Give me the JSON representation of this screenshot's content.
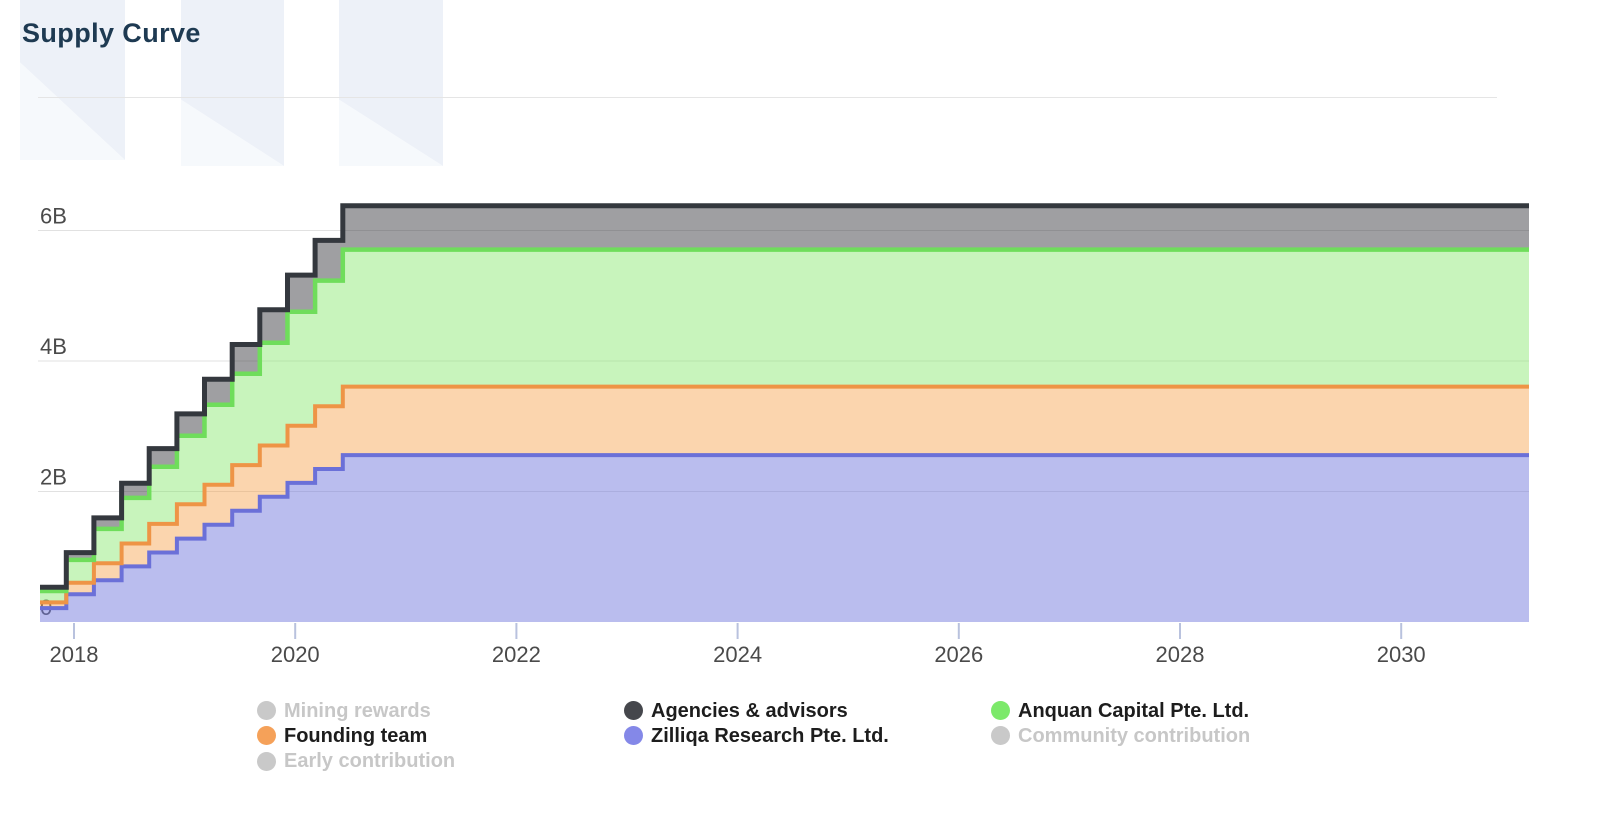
{
  "chart_data": {
    "type": "area",
    "variant": "stacked-step-area",
    "title": "Supply Curve",
    "x_axis": {
      "range_years": [
        2017.693,
        2031.156
      ],
      "ticks": [
        {
          "year": 2018,
          "label": "2018"
        },
        {
          "year": 2020,
          "label": "2020"
        },
        {
          "year": 2022,
          "label": "2022"
        },
        {
          "year": 2024,
          "label": "2024"
        },
        {
          "year": 2026,
          "label": "2026"
        },
        {
          "year": 2028,
          "label": "2028"
        },
        {
          "year": 2030,
          "label": "2030"
        }
      ]
    },
    "y_axis": {
      "unit": "tokens",
      "range_billions": [
        0,
        6.77
      ],
      "ticks": [
        {
          "value_b": 0,
          "label": "0"
        },
        {
          "value_b": 2,
          "label": "2B"
        },
        {
          "value_b": 4,
          "label": "4B"
        },
        {
          "value_b": 6,
          "label": "6B"
        }
      ]
    },
    "vesting": {
      "tranche_count": 12,
      "note": "each visible series unlocks in 12 equal quarterly tranches, first tranche at chart start, fully vested mid-2020",
      "level_start_years": [
        2017.693,
        2017.93,
        2018.18,
        2018.43,
        2018.68,
        2018.93,
        2019.18,
        2019.43,
        2019.68,
        2019.93,
        2020.18,
        2020.43
      ]
    },
    "series": [
      {
        "name": "Zilliqa Research Pte. Ltd.",
        "total_b": 2.5575,
        "line": "#6b70d8",
        "fill": "rgba(117,123,221,0.5)",
        "line_width": 4
      },
      {
        "name": "Founding team",
        "total_b": 1.05,
        "line": "#ee9446",
        "fill": "rgba(246,162,75,0.45)",
        "line_width": 4
      },
      {
        "name": "Anquan Capital Pte. Ltd.",
        "total_b": 2.1,
        "line": "#6fdd5b",
        "fill": "rgba(133,231,106,0.45)",
        "line_width": 4.5
      },
      {
        "name": "Agencies & advisors",
        "total_b": 0.672,
        "line": "#34383e",
        "fill": "rgba(64,63,70,0.5)",
        "line_width": 5
      }
    ],
    "grid_color": "#e1e1e1",
    "tick_color": "#b9c2de"
  },
  "legend": {
    "columns": [
      {
        "items": [
          {
            "label": "Mining rewards",
            "slug": "mining-rewards",
            "color": "#c9c9c9",
            "active": false
          },
          {
            "label": "Founding team",
            "slug": "founding-team",
            "color": "#f5a159",
            "active": true
          },
          {
            "label": "Early contribution",
            "slug": "early-contribution",
            "color": "#c9c9c9",
            "active": false
          }
        ]
      },
      {
        "items": [
          {
            "label": "Agencies & advisors",
            "slug": "agencies-advisors",
            "color": "#45474c",
            "active": true
          },
          {
            "label": "Zilliqa Research Pte. Ltd.",
            "slug": "zilliqa-research",
            "color": "#8488e8",
            "active": true
          }
        ]
      },
      {
        "items": [
          {
            "label": "Anquan Capital Pte. Ltd.",
            "slug": "anquan-capital",
            "color": "#7ce96a",
            "active": true
          },
          {
            "label": "Community contribution",
            "slug": "community-contribution",
            "color": "#c9c9c9",
            "active": false
          }
        ]
      }
    ]
  }
}
